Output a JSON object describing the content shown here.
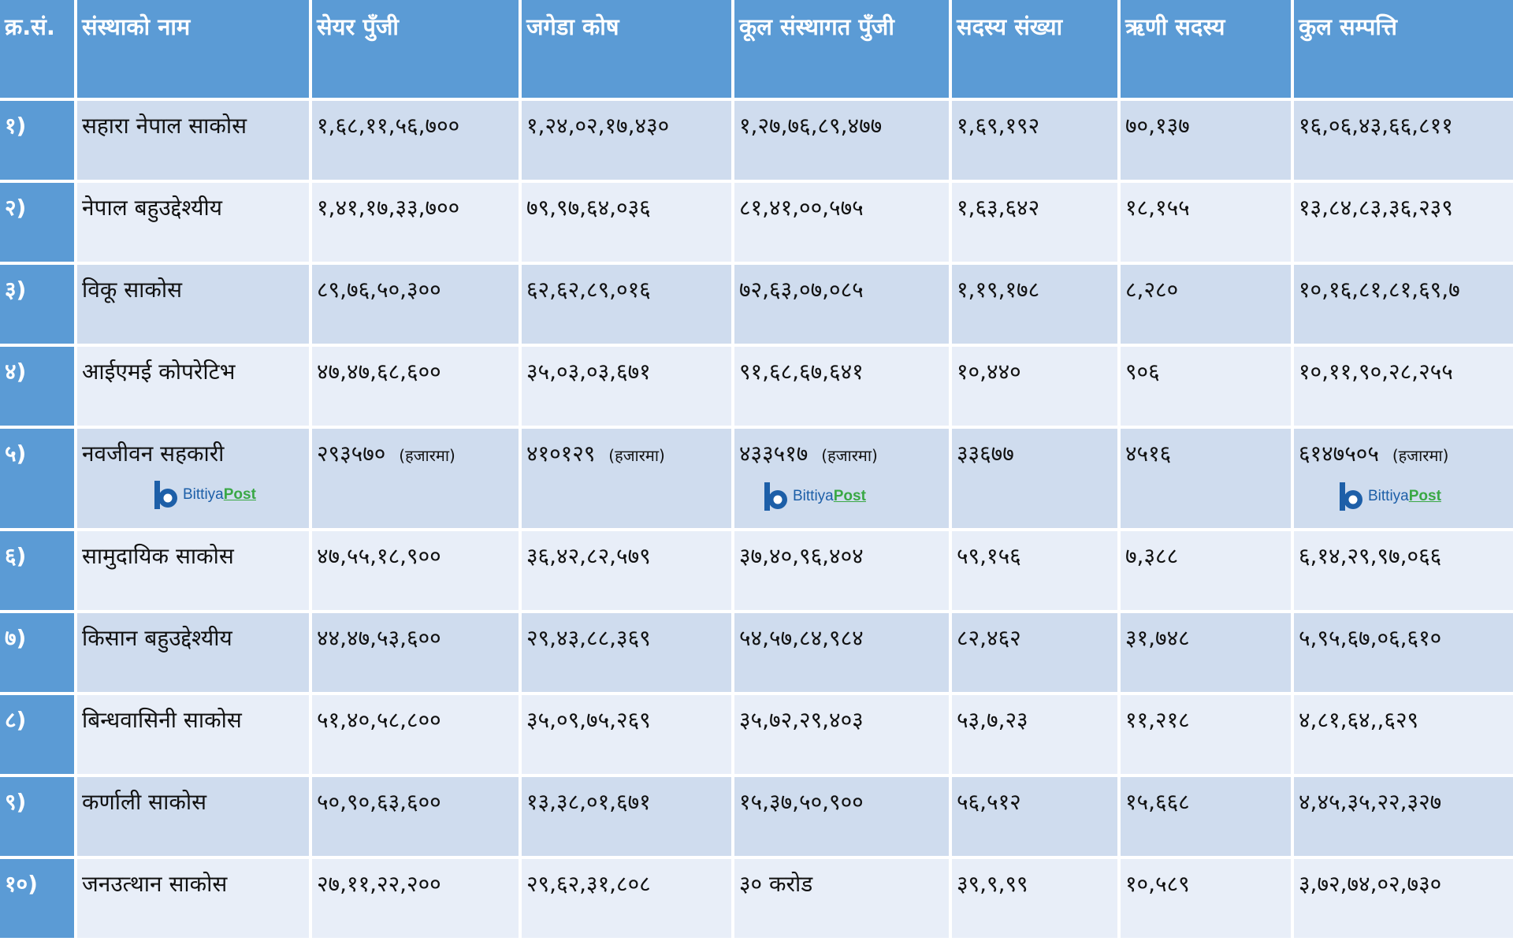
{
  "headers": [
    "क्र.सं.",
    "संस्थाको नाम",
    "सेयर पुँजी",
    "जगेडा कोष",
    "कूल संस्थागत पुँजी",
    "सदस्य संख्या",
    "ऋणी सदस्य",
    "कुल सम्पत्ति"
  ],
  "rows": [
    {
      "sn": "१)",
      "name": "सहारा नेपाल साकोस",
      "share": "१,६८,११,५६,७००",
      "reserve": "१,२४,०२,१७,४३०",
      "total_capital": "१,२७,७६,८९,४७७",
      "members": "१,६९,१९२",
      "borrowers": "७०,१३७",
      "assets": "१६,०६,४३,६६,८११"
    },
    {
      "sn": "२)",
      "name": "नेपाल बहुउद्देश्यीय",
      "share": "१,४१,१७,३३,७००",
      "reserve": "७९,९७,६४,०३६",
      "total_capital": "८१,४१,००,५७५",
      "members": "१,६३,६४२",
      "borrowers": "१८,१५५",
      "assets": "१३,८४,८३,३६,२३९"
    },
    {
      "sn": "३)",
      "name": "विकू साकोस",
      "share": "८९,७६,५०,३००",
      "reserve": "६२,६२,८९,०१६",
      "total_capital": "७२,६३,०७,०८५",
      "members": "१,१९,१७८",
      "borrowers": "८,२८०",
      "assets": "१०,१६,८१,८१,६९,७"
    },
    {
      "sn": "४)",
      "name": "आईएमई कोपरेटिभ",
      "share": "४७,४७,६८,६००",
      "reserve": "३५,०३,०३,६७१",
      "total_capital": "९१,६८,६७,६४१",
      "members": "१०,४४०",
      "borrowers": "९०६",
      "assets": "१०,११,९०,२८,२५५"
    },
    {
      "sn": "५)",
      "name": "नवजीवन सहकारी",
      "share": "२९३५७० ",
      "share_unit": "(हजारमा)",
      "reserve": "४१०१२९ ",
      "reserve_unit": "(हजारमा)",
      "total_capital": "४३३५१७ ",
      "total_capital_unit": "(हजारमा)",
      "members": "३३६७७",
      "borrowers": "४५१६",
      "assets": "६१४७५०५ ",
      "assets_unit": "(हजारमा)"
    },
    {
      "sn": "६)",
      "name": "सामुदायिक साकोस",
      "share": "४७,५५,१८,९००",
      "reserve": "३६,४२,८२,५७९",
      "total_capital": "३७,४०,९६,४०४",
      "members": "५९,१५६",
      "borrowers": "७,३८८",
      "assets": "६,१४,२९,९७,०६६"
    },
    {
      "sn": "७)",
      "name": "किसान बहुउद्देश्यीय",
      "share": "४४,४७,५३,६००",
      "reserve": "२९,४३,८८,३६९",
      "total_capital": " ५४,५७,८४,९८४",
      "members": "८२,४६२",
      "borrowers": "३१,७४८",
      "assets": "५,९५,६७,०६,६१०"
    },
    {
      "sn": "८)",
      "name": "बिन्धवासिनी साकोस",
      "share": "५१,४०,५८,८००",
      "reserve": "३५,०९,७५,२६९",
      "total_capital": "३५,७२,२९,४०३",
      "members": "५३,७,२३",
      "borrowers": "११,२१८",
      "assets": "४,८१,६४,,६२९"
    },
    {
      "sn": "९)",
      "name": "कर्णाली साकोस",
      "share": "५०,९०,६३,६००",
      "reserve": "१३,३८,०१,६७१",
      "total_capital": "१५,३७,५०,९००",
      "members": "५६,५१२",
      "borrowers": "१५,६६८",
      "assets": "४,४५,३५,२२,३२७"
    },
    {
      "sn": "१०)",
      "name": "जनउत्थान साकोस",
      "share": "२७,११,२२,२००",
      "reserve": "२९,६२,३१,८०८",
      "total_capital": " ३० करोड",
      "members": "३९,९,९९",
      "borrowers": "१०,५८९",
      "assets": "३,७२,७४,०२,७३०"
    }
  ],
  "watermark": {
    "part1": "Bittiya",
    "part2": "Post",
    "color_blue": "#1d5fa8",
    "color_green": "#3aa845"
  },
  "colors": {
    "header_bg": "#5b9bd5",
    "row_odd": "#cfdcee",
    "row_even": "#e8eef8"
  }
}
